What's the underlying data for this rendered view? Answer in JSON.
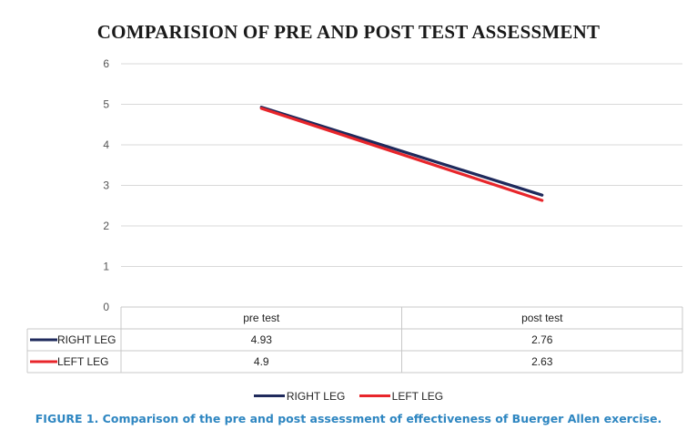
{
  "chart_data": {
    "type": "line",
    "title": "COMPARISION OF PRE AND POST TEST ASSESSMENT",
    "categories": [
      "pre test",
      "post test"
    ],
    "series": [
      {
        "name": "RIGHT LEG",
        "values": [
          4.93,
          2.76
        ],
        "color": "#1f2a5c"
      },
      {
        "name": "LEFT LEG",
        "values": [
          4.9,
          2.63
        ],
        "color": "#e8262b"
      }
    ],
    "yticks": [
      "0",
      "1",
      "2",
      "3",
      "4",
      "5",
      "6"
    ],
    "ylim": [
      0,
      6
    ],
    "data_table": [
      [
        "4.93",
        "2.76"
      ],
      [
        "4.9",
        "2.63"
      ]
    ],
    "grid": true,
    "legend_position": "bottom"
  },
  "caption": "FIGURE 1. Comparison of the pre and post assessment of effectiveness of Buerger Allen exercise."
}
